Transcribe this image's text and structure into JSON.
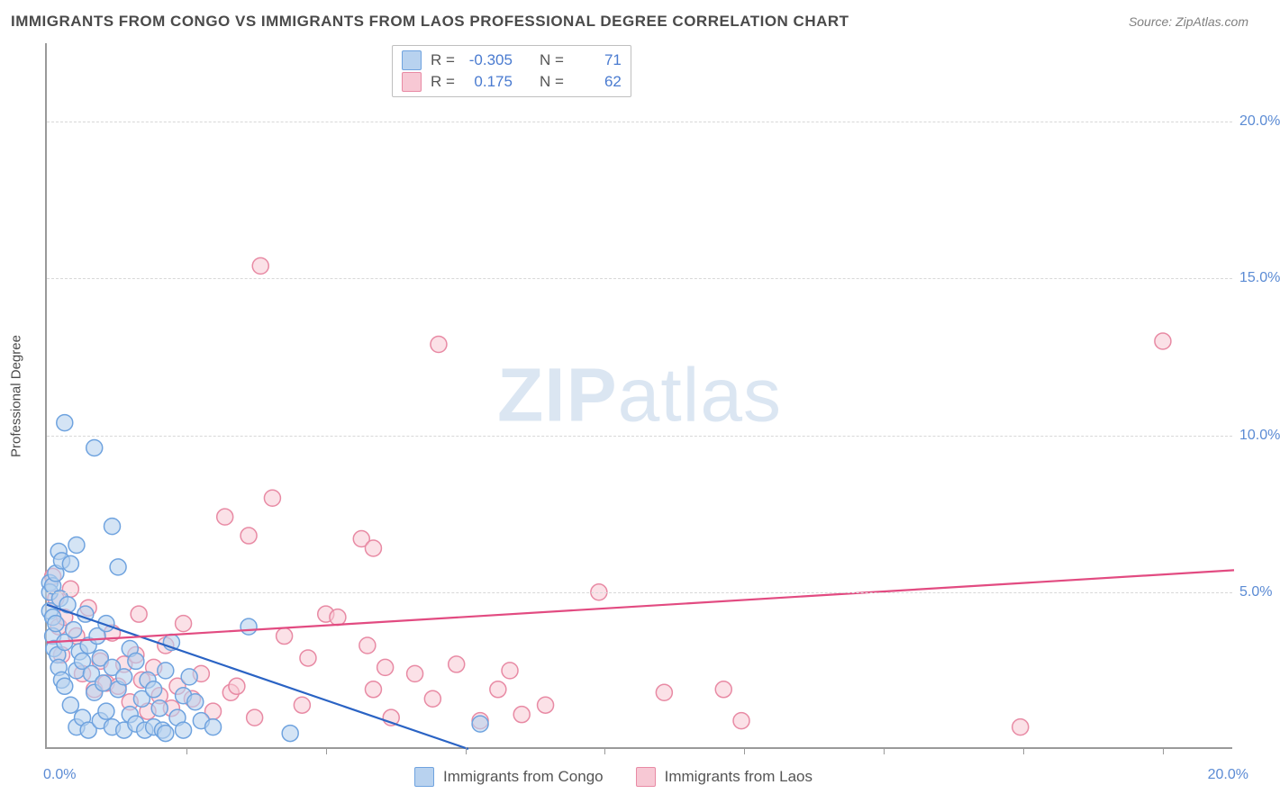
{
  "title": "IMMIGRANTS FROM CONGO VS IMMIGRANTS FROM LAOS PROFESSIONAL DEGREE CORRELATION CHART",
  "source": "Source: ZipAtlas.com",
  "watermark": "ZIPatlas",
  "ylabel": "Professional Degree",
  "chart": {
    "type": "scatter",
    "xlim": [
      0,
      20
    ],
    "ylim": [
      0,
      22.5
    ],
    "x_axis_label_left": "0.0%",
    "x_axis_label_right": "20.0%",
    "yticks": [
      {
        "v": 5.0,
        "label": "5.0%"
      },
      {
        "v": 10.0,
        "label": "10.0%"
      },
      {
        "v": 15.0,
        "label": "15.0%"
      },
      {
        "v": 20.0,
        "label": "20.0%"
      }
    ],
    "xticks_minor": [
      2.35,
      4.7,
      7.05,
      9.4,
      11.75,
      14.1,
      16.45,
      18.8
    ],
    "background_color": "#ffffff",
    "grid_color": "#d8d8d8",
    "axis_color": "#9a9a9a",
    "tick_label_color": "#5b8bd4",
    "marker_radius": 9,
    "marker_stroke_width": 1.5,
    "trend_line_width": 2.2
  },
  "series": {
    "congo": {
      "label": "Immigrants from Congo",
      "fill": "#b8d2ef",
      "stroke": "#6fa3df",
      "fill_opacity": 0.6,
      "R": "-0.305",
      "N": "71",
      "trend": {
        "x1": 0,
        "y1": 4.6,
        "x2": 7.1,
        "y2": 0,
        "color": "#2a63c4"
      },
      "points": [
        [
          0.05,
          5.3
        ],
        [
          0.05,
          5.0
        ],
        [
          0.05,
          4.4
        ],
        [
          0.1,
          5.2
        ],
        [
          0.1,
          4.2
        ],
        [
          0.1,
          3.6
        ],
        [
          0.12,
          3.2
        ],
        [
          0.15,
          5.6
        ],
        [
          0.15,
          4.0
        ],
        [
          0.18,
          3.0
        ],
        [
          0.2,
          6.3
        ],
        [
          0.2,
          2.6
        ],
        [
          0.22,
          4.8
        ],
        [
          0.25,
          6.0
        ],
        [
          0.25,
          2.2
        ],
        [
          0.3,
          10.4
        ],
        [
          0.3,
          3.4
        ],
        [
          0.3,
          2.0
        ],
        [
          0.35,
          4.6
        ],
        [
          0.4,
          5.9
        ],
        [
          0.4,
          1.4
        ],
        [
          0.45,
          3.8
        ],
        [
          0.5,
          6.5
        ],
        [
          0.5,
          2.5
        ],
        [
          0.5,
          0.7
        ],
        [
          0.55,
          3.1
        ],
        [
          0.6,
          2.8
        ],
        [
          0.6,
          1.0
        ],
        [
          0.65,
          4.3
        ],
        [
          0.7,
          3.3
        ],
        [
          0.7,
          0.6
        ],
        [
          0.75,
          2.4
        ],
        [
          0.8,
          9.6
        ],
        [
          0.8,
          1.8
        ],
        [
          0.85,
          3.6
        ],
        [
          0.9,
          2.9
        ],
        [
          0.9,
          0.9
        ],
        [
          0.95,
          2.1
        ],
        [
          1.0,
          1.2
        ],
        [
          1.0,
          4.0
        ],
        [
          1.1,
          7.1
        ],
        [
          1.1,
          2.6
        ],
        [
          1.1,
          0.7
        ],
        [
          1.2,
          5.8
        ],
        [
          1.2,
          1.9
        ],
        [
          1.3,
          2.3
        ],
        [
          1.3,
          0.6
        ],
        [
          1.4,
          1.1
        ],
        [
          1.4,
          3.2
        ],
        [
          1.5,
          2.8
        ],
        [
          1.5,
          0.8
        ],
        [
          1.6,
          1.6
        ],
        [
          1.65,
          0.6
        ],
        [
          1.7,
          2.2
        ],
        [
          1.8,
          0.7
        ],
        [
          1.8,
          1.9
        ],
        [
          1.9,
          1.3
        ],
        [
          1.95,
          0.6
        ],
        [
          2.0,
          2.5
        ],
        [
          2.0,
          0.5
        ],
        [
          2.1,
          3.4
        ],
        [
          2.2,
          1.0
        ],
        [
          2.3,
          0.6
        ],
        [
          2.3,
          1.7
        ],
        [
          2.4,
          2.3
        ],
        [
          2.5,
          1.5
        ],
        [
          2.6,
          0.9
        ],
        [
          2.8,
          0.7
        ],
        [
          3.4,
          3.9
        ],
        [
          4.1,
          0.5
        ],
        [
          7.3,
          0.8
        ]
      ]
    },
    "laos": {
      "label": "Immigrants from Laos",
      "fill": "#f7c8d4",
      "stroke": "#e88aa4",
      "fill_opacity": 0.55,
      "R": "0.175",
      "N": "62",
      "trend": {
        "x1": 0,
        "y1": 3.4,
        "x2": 20,
        "y2": 5.7,
        "color": "#e24b81"
      },
      "points": [
        [
          0.1,
          5.5
        ],
        [
          0.15,
          4.8
        ],
        [
          0.2,
          3.9
        ],
        [
          0.25,
          3.0
        ],
        [
          0.3,
          4.2
        ],
        [
          0.4,
          5.1
        ],
        [
          0.5,
          3.6
        ],
        [
          0.6,
          2.4
        ],
        [
          0.7,
          4.5
        ],
        [
          0.8,
          1.9
        ],
        [
          0.9,
          2.8
        ],
        [
          1.0,
          2.1
        ],
        [
          1.1,
          3.7
        ],
        [
          1.2,
          2.0
        ],
        [
          1.3,
          2.7
        ],
        [
          1.4,
          1.5
        ],
        [
          1.5,
          3.0
        ],
        [
          1.55,
          4.3
        ],
        [
          1.6,
          2.2
        ],
        [
          1.7,
          1.2
        ],
        [
          1.8,
          2.6
        ],
        [
          1.9,
          1.7
        ],
        [
          2.0,
          3.3
        ],
        [
          2.1,
          1.3
        ],
        [
          2.2,
          2.0
        ],
        [
          2.3,
          4.0
        ],
        [
          2.45,
          1.6
        ],
        [
          2.6,
          2.4
        ],
        [
          2.8,
          1.2
        ],
        [
          3.0,
          7.4
        ],
        [
          3.1,
          1.8
        ],
        [
          3.2,
          2.0
        ],
        [
          3.4,
          6.8
        ],
        [
          3.5,
          1.0
        ],
        [
          3.6,
          15.4
        ],
        [
          3.8,
          8.0
        ],
        [
          4.0,
          3.6
        ],
        [
          4.3,
          1.4
        ],
        [
          4.4,
          2.9
        ],
        [
          4.7,
          4.3
        ],
        [
          4.9,
          4.2
        ],
        [
          5.3,
          6.7
        ],
        [
          5.4,
          3.3
        ],
        [
          5.5,
          6.4
        ],
        [
          5.5,
          1.9
        ],
        [
          5.7,
          2.6
        ],
        [
          5.8,
          1.0
        ],
        [
          6.2,
          2.4
        ],
        [
          6.5,
          1.6
        ],
        [
          6.6,
          12.9
        ],
        [
          6.9,
          2.7
        ],
        [
          7.3,
          0.9
        ],
        [
          7.6,
          1.9
        ],
        [
          7.8,
          2.5
        ],
        [
          8.0,
          1.1
        ],
        [
          8.4,
          1.4
        ],
        [
          9.3,
          5.0
        ],
        [
          10.4,
          1.8
        ],
        [
          11.4,
          1.9
        ],
        [
          11.7,
          0.9
        ],
        [
          16.4,
          0.7
        ],
        [
          18.8,
          13.0
        ]
      ]
    }
  },
  "legend_top": {
    "rows": [
      {
        "swatch": "congo",
        "r_label": "R =",
        "n_label": "N ="
      },
      {
        "swatch": "laos",
        "r_label": "R =",
        "n_label": "N ="
      }
    ]
  }
}
